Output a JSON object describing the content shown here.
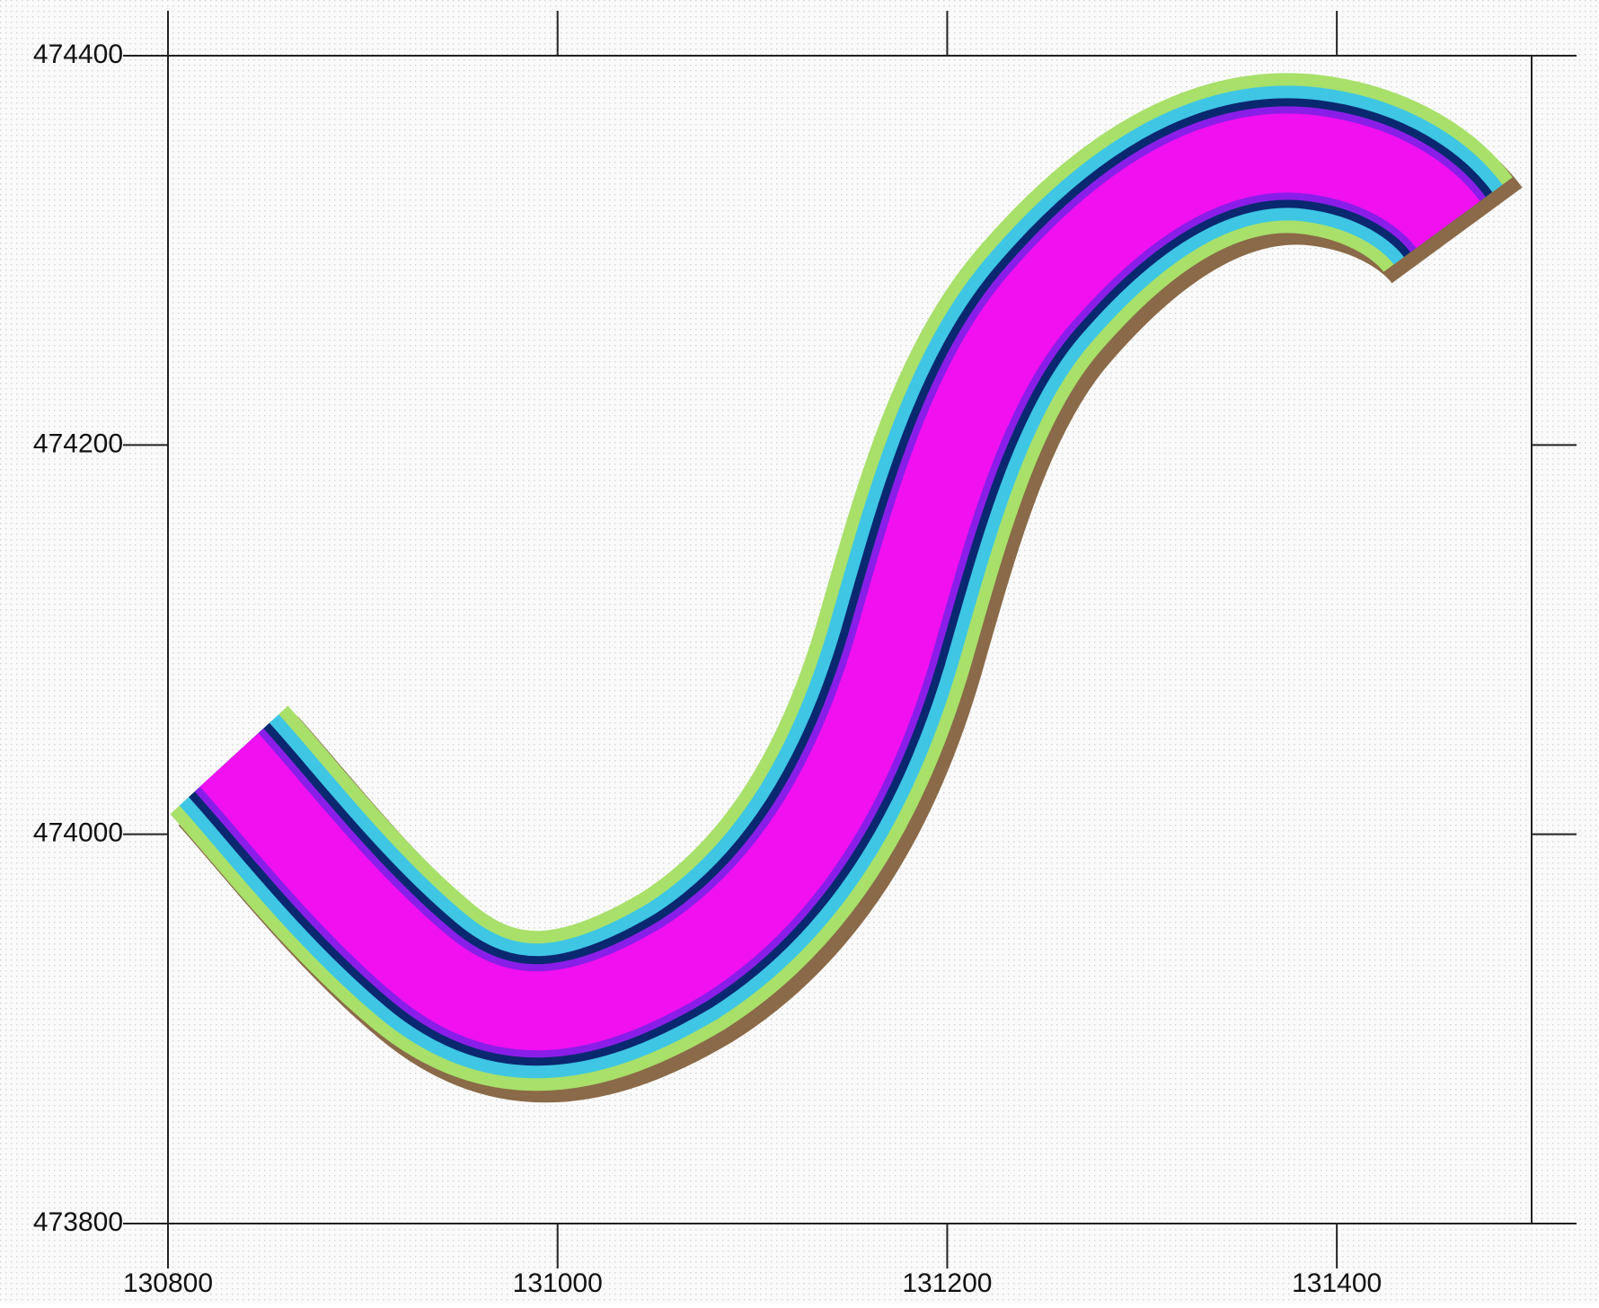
{
  "chart_data": {
    "type": "contour-map",
    "xlim": [
      130800,
      131500
    ],
    "ylim": [
      473800,
      474400
    ],
    "xticks": [
      130800,
      131000,
      131200,
      131400
    ],
    "yticks": [
      473800,
      474000,
      474200,
      474400
    ]
  }
}
